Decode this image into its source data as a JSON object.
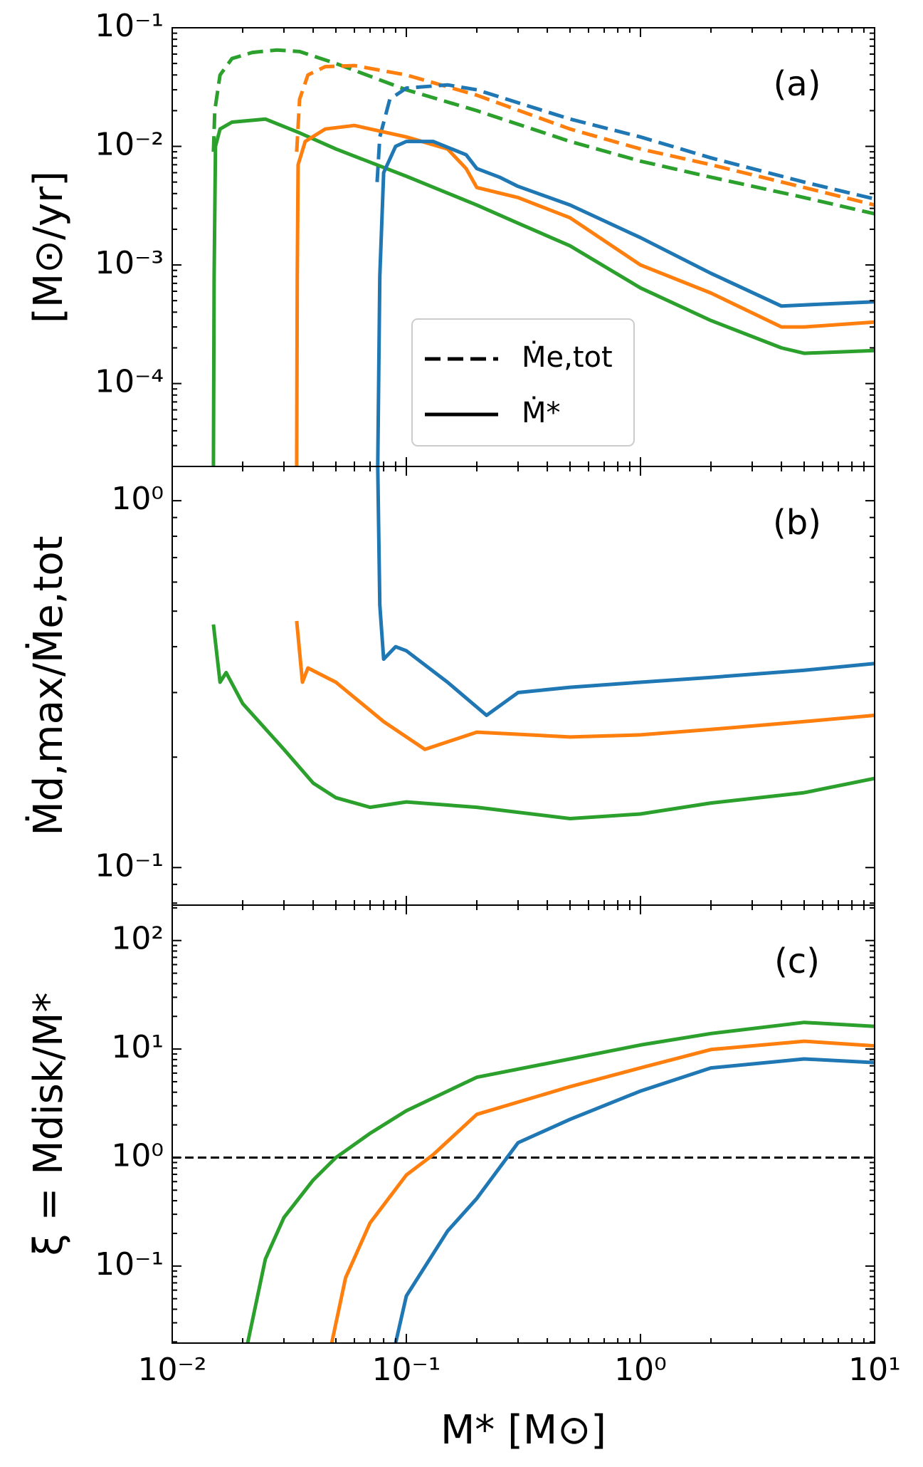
{
  "chart_data": [
    {
      "type": "line",
      "panel_label": "(a)",
      "ylabel": "[M⊙/yr]",
      "yscale": "log",
      "xscale": "log",
      "minor_ticks": true,
      "xlim": [
        0.01,
        10
      ],
      "xticks": [
        0.01,
        0.1,
        1,
        10
      ],
      "ylim": [
        2e-05,
        0.1
      ],
      "yticks": [
        {
          "value": 0.0001,
          "label": "10⁻⁴"
        },
        {
          "value": 0.001,
          "label": "10⁻³"
        },
        {
          "value": 0.01,
          "label": "10⁻²"
        },
        {
          "value": 0.1,
          "label": "10⁻¹"
        }
      ],
      "legend": [
        {
          "label": "Ṁe,tot",
          "dash": "dashed"
        },
        {
          "label": "Ṁ*",
          "dash": "solid"
        }
      ],
      "series": [
        {
          "color": "#2ca02c",
          "dash": "dashed",
          "x": [
            0.015,
            0.0152,
            0.016,
            0.018,
            0.022,
            0.028,
            0.035,
            0.05,
            0.1,
            0.2,
            0.5,
            1,
            2,
            5,
            10
          ],
          "values": [
            0.009,
            0.02,
            0.04,
            0.055,
            0.062,
            0.065,
            0.063,
            0.05,
            0.03,
            0.02,
            0.011,
            0.0075,
            0.0055,
            0.0037,
            0.0027
          ]
        },
        {
          "color": "#ff7f0e",
          "dash": "dashed",
          "x": [
            0.034,
            0.035,
            0.038,
            0.045,
            0.06,
            0.1,
            0.2,
            0.5,
            1,
            2,
            5,
            10
          ],
          "values": [
            0.009,
            0.025,
            0.04,
            0.047,
            0.048,
            0.04,
            0.027,
            0.014,
            0.0095,
            0.007,
            0.0045,
            0.0032
          ]
        },
        {
          "color": "#1f77b4",
          "dash": "dashed",
          "x": [
            0.075,
            0.077,
            0.085,
            0.1,
            0.15,
            0.2,
            0.5,
            1,
            2,
            5,
            10
          ],
          "values": [
            0.005,
            0.012,
            0.025,
            0.031,
            0.033,
            0.03,
            0.017,
            0.012,
            0.008,
            0.005,
            0.0036
          ]
        },
        {
          "color": "#2ca02c",
          "dash": "solid",
          "x": [
            0.015,
            0.0151,
            0.0153,
            0.016,
            0.018,
            0.025,
            0.035,
            0.05,
            0.1,
            0.2,
            0.3,
            0.5,
            1,
            2,
            4,
            5,
            10
          ],
          "values": [
            2e-05,
            0.0008,
            0.01,
            0.014,
            0.016,
            0.017,
            0.013,
            0.0095,
            0.0056,
            0.0032,
            0.00225,
            0.00145,
            0.00064,
            0.00034,
            0.0002,
            0.00018,
            0.00019
          ]
        },
        {
          "color": "#ff7f0e",
          "dash": "solid",
          "x": [
            0.034,
            0.0342,
            0.0345,
            0.037,
            0.045,
            0.06,
            0.1,
            0.15,
            0.18,
            0.2,
            0.3,
            0.5,
            1,
            2,
            4,
            5,
            10
          ],
          "values": [
            2e-05,
            0.0008,
            0.007,
            0.011,
            0.014,
            0.015,
            0.012,
            0.0095,
            0.0065,
            0.0045,
            0.0037,
            0.0025,
            0.001,
            0.00058,
            0.0003,
            0.0003,
            0.00033
          ]
        },
        {
          "color": "#1f77b4",
          "dash": "solid",
          "x": [
            0.0755,
            0.077,
            0.08,
            0.09,
            0.1,
            0.13,
            0.18,
            0.2,
            0.25,
            0.3,
            0.5,
            1,
            2,
            4,
            5,
            10
          ],
          "values": [
            2e-05,
            0.0008,
            0.006,
            0.01,
            0.011,
            0.011,
            0.0085,
            0.0065,
            0.0055,
            0.0046,
            0.0032,
            0.0017,
            0.00085,
            0.00045,
            0.00046,
            0.00049
          ]
        }
      ]
    },
    {
      "type": "line",
      "panel_label": "(b)",
      "ylabel": "Ṁd,max/Ṁe,tot",
      "yscale": "log",
      "xscale": "log",
      "minor_ticks": true,
      "xlim": [
        0.01,
        10
      ],
      "xticks": [
        0.01,
        0.1,
        1,
        10
      ],
      "ylim": [
        0.079,
        1.24
      ],
      "yticks": [
        {
          "value": 0.1,
          "label": "10⁻¹"
        },
        {
          "value": 1,
          "label": "10⁰"
        }
      ],
      "series": [
        {
          "color": "#2ca02c",
          "dash": "solid",
          "x": [
            0.015,
            0.016,
            0.017,
            0.02,
            0.03,
            0.04,
            0.05,
            0.07,
            0.1,
            0.2,
            0.5,
            1,
            2,
            5,
            10
          ],
          "values": [
            0.46,
            0.32,
            0.34,
            0.28,
            0.21,
            0.17,
            0.155,
            0.146,
            0.151,
            0.146,
            0.136,
            0.14,
            0.15,
            0.16,
            0.175
          ]
        },
        {
          "color": "#ff7f0e",
          "dash": "solid",
          "x": [
            0.034,
            0.036,
            0.038,
            0.05,
            0.08,
            0.12,
            0.2,
            0.5,
            1,
            2,
            5,
            10
          ],
          "values": [
            0.47,
            0.32,
            0.35,
            0.32,
            0.25,
            0.21,
            0.234,
            0.227,
            0.23,
            0.238,
            0.25,
            0.26
          ]
        },
        {
          "color": "#1f77b4",
          "dash": "solid",
          "x": [
            0.0755,
            0.077,
            0.08,
            0.09,
            0.1,
            0.15,
            0.22,
            0.3,
            0.5,
            1,
            2,
            5,
            10
          ],
          "values": [
            1.24,
            0.52,
            0.37,
            0.4,
            0.39,
            0.32,
            0.26,
            0.3,
            0.31,
            0.32,
            0.33,
            0.345,
            0.36
          ]
        }
      ]
    },
    {
      "type": "line",
      "panel_label": "(c)",
      "ylabel": "ξ = Mdisk/M*",
      "xlabel": "M* [M⊙]",
      "yscale": "log",
      "xscale": "log",
      "minor_ticks": true,
      "xlim": [
        0.01,
        10
      ],
      "xticks": [
        {
          "value": 0.01,
          "label": "10⁻²"
        },
        {
          "value": 0.1,
          "label": "10⁻¹"
        },
        {
          "value": 1,
          "label": "10⁰"
        },
        {
          "value": 10,
          "label": "10¹"
        }
      ],
      "ylim": [
        0.0195,
        212
      ],
      "yticks": [
        {
          "value": 0.1,
          "label": "10⁻¹"
        },
        {
          "value": 1,
          "label": "10⁰"
        },
        {
          "value": 10,
          "label": "10¹"
        },
        {
          "value": 100,
          "label": "10²"
        }
      ],
      "hline": 1,
      "series": [
        {
          "color": "#2ca02c",
          "dash": "solid",
          "x": [
            0.021,
            0.025,
            0.03,
            0.04,
            0.05,
            0.07,
            0.1,
            0.2,
            0.5,
            1,
            2,
            5,
            10
          ],
          "values": [
            0.0195,
            0.116,
            0.28,
            0.62,
            1.0,
            1.67,
            2.7,
            5.5,
            8.1,
            10.9,
            13.9,
            17.6,
            16.2
          ]
        },
        {
          "color": "#ff7f0e",
          "dash": "solid",
          "x": [
            0.048,
            0.055,
            0.07,
            0.1,
            0.13,
            0.2,
            0.5,
            1,
            2,
            5,
            10
          ],
          "values": [
            0.0195,
            0.078,
            0.25,
            0.69,
            1.06,
            2.5,
            4.5,
            6.7,
            9.9,
            11.8,
            10.7
          ]
        },
        {
          "color": "#1f77b4",
          "dash": "solid",
          "x": [
            0.09,
            0.1,
            0.15,
            0.2,
            0.3,
            0.5,
            1,
            2,
            5,
            10
          ],
          "values": [
            0.0195,
            0.053,
            0.21,
            0.42,
            1.37,
            2.25,
            4.1,
            6.7,
            8.1,
            7.5
          ]
        }
      ]
    }
  ]
}
